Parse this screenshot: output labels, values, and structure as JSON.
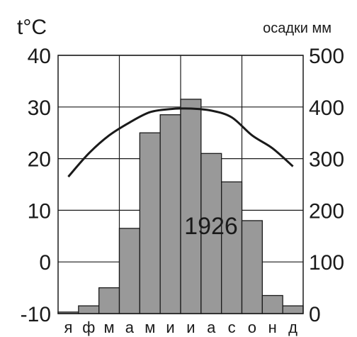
{
  "chart_data": {
    "type": "bar",
    "categories": [
      "я",
      "ф",
      "м",
      "а",
      "м",
      "и",
      "и",
      "а",
      "с",
      "о",
      "н",
      "д"
    ],
    "bar_series": {
      "values": [
        3,
        15,
        50,
        165,
        350,
        385,
        415,
        310,
        255,
        180,
        35,
        15
      ],
      "color": "#999999"
    },
    "line_series": {
      "values": [
        16.5,
        21,
        24.5,
        27,
        29,
        29.6,
        29.7,
        29.3,
        28,
        24.5,
        22,
        18.5
      ],
      "color": "#1a1a1a"
    },
    "left_axis": {
      "label": "t°C",
      "ticks": [
        "40",
        "30",
        "20",
        "10",
        "0",
        "-10"
      ],
      "range": [
        -10,
        40
      ]
    },
    "right_axis": {
      "label": "осадки мм",
      "ticks": [
        "500",
        "400",
        "300",
        "200",
        "100",
        "0"
      ],
      "range": [
        0,
        500
      ]
    },
    "annotation": "1926",
    "grid": true
  }
}
